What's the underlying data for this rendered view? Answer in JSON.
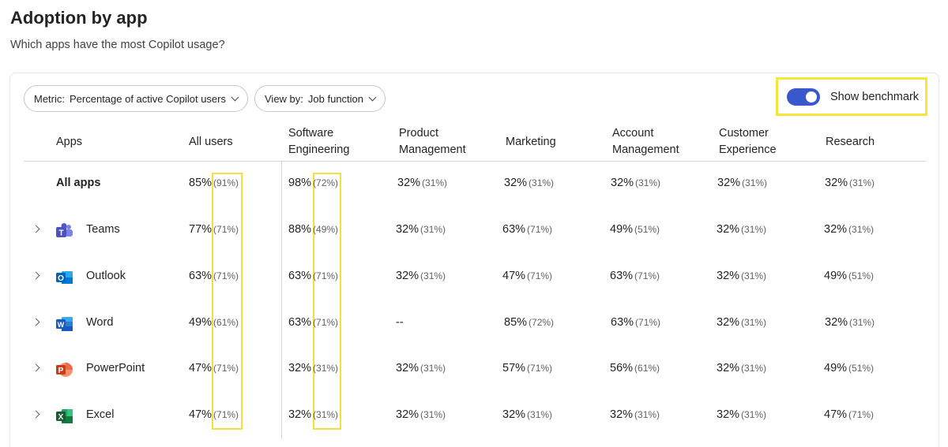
{
  "header": {
    "title": "Adoption by app",
    "subtitle": "Which apps have the most Copilot usage?"
  },
  "filters": {
    "metric_label": "Metric:",
    "metric_value": "Percentage of active Copilot users",
    "viewby_label": "View by:",
    "viewby_value": "Job function"
  },
  "benchmark": {
    "label": "Show benchmark",
    "enabled": true,
    "toggle_color": "#3858cc",
    "highlight_color": "#f7e63a"
  },
  "table": {
    "columns": [
      {
        "l1": "Apps",
        "l2": ""
      },
      {
        "l1": "All users",
        "l2": ""
      },
      {
        "l1": "Software",
        "l2": "Engineering"
      },
      {
        "l1": "Product",
        "l2": "Management"
      },
      {
        "l1": "Marketing",
        "l2": ""
      },
      {
        "l1": "Account",
        "l2": "Management"
      },
      {
        "l1": "Customer",
        "l2": "Experience"
      },
      {
        "l1": "Research",
        "l2": ""
      }
    ],
    "rows": [
      {
        "app": "All apps",
        "icon": "",
        "summary": true,
        "cells": [
          {
            "v": "85%",
            "b": "(91%)"
          },
          {
            "v": "98%",
            "b": "(72%)"
          },
          {
            "v": "32%",
            "b": "(31%)"
          },
          {
            "v": "32%",
            "b": "(31%)"
          },
          {
            "v": "32%",
            "b": "(31%)"
          },
          {
            "v": "32%",
            "b": "(31%)"
          },
          {
            "v": "32%",
            "b": "(31%)"
          }
        ]
      },
      {
        "app": "Teams",
        "icon": "teams-icon",
        "summary": false,
        "cells": [
          {
            "v": "77%",
            "b": "(71%)"
          },
          {
            "v": "88%",
            "b": "(49%)"
          },
          {
            "v": "32%",
            "b": "(31%)"
          },
          {
            "v": "63%",
            "b": "(71%)"
          },
          {
            "v": "49%",
            "b": "(51%)"
          },
          {
            "v": "32%",
            "b": "(31%)"
          },
          {
            "v": "32%",
            "b": "(31%)"
          }
        ]
      },
      {
        "app": "Outlook",
        "icon": "outlook-icon",
        "summary": false,
        "cells": [
          {
            "v": "63%",
            "b": "(71%)"
          },
          {
            "v": "63%",
            "b": "(71%)"
          },
          {
            "v": "32%",
            "b": "(31%)"
          },
          {
            "v": "47%",
            "b": "(71%)"
          },
          {
            "v": "63%",
            "b": "(71%)"
          },
          {
            "v": "32%",
            "b": "(31%)"
          },
          {
            "v": "49%",
            "b": "(51%)"
          }
        ]
      },
      {
        "app": "Word",
        "icon": "word-icon",
        "summary": false,
        "cells": [
          {
            "v": "49%",
            "b": "(61%)"
          },
          {
            "v": "63%",
            "b": "(71%)"
          },
          {
            "v": "--",
            "b": ""
          },
          {
            "v": "85%",
            "b": "(72%)"
          },
          {
            "v": "63%",
            "b": "(71%)"
          },
          {
            "v": "32%",
            "b": "(31%)"
          },
          {
            "v": "32%",
            "b": "(31%)"
          }
        ]
      },
      {
        "app": "PowerPoint",
        "icon": "powerpoint-icon",
        "summary": false,
        "cells": [
          {
            "v": "47%",
            "b": "(71%)"
          },
          {
            "v": "32%",
            "b": "(31%)"
          },
          {
            "v": "32%",
            "b": "(31%)"
          },
          {
            "v": "57%",
            "b": "(71%)"
          },
          {
            "v": "56%",
            "b": "(61%)"
          },
          {
            "v": "32%",
            "b": "(31%)"
          },
          {
            "v": "49%",
            "b": "(51%)"
          }
        ]
      },
      {
        "app": "Excel",
        "icon": "excel-icon",
        "summary": false,
        "cells": [
          {
            "v": "47%",
            "b": "(71%)"
          },
          {
            "v": "32%",
            "b": "(31%)"
          },
          {
            "v": "32%",
            "b": "(31%)"
          },
          {
            "v": "32%",
            "b": "(31%)"
          },
          {
            "v": "32%",
            "b": "(31%)"
          },
          {
            "v": "32%",
            "b": "(31%)"
          },
          {
            "v": "47%",
            "b": "(71%)"
          }
        ]
      }
    ]
  }
}
